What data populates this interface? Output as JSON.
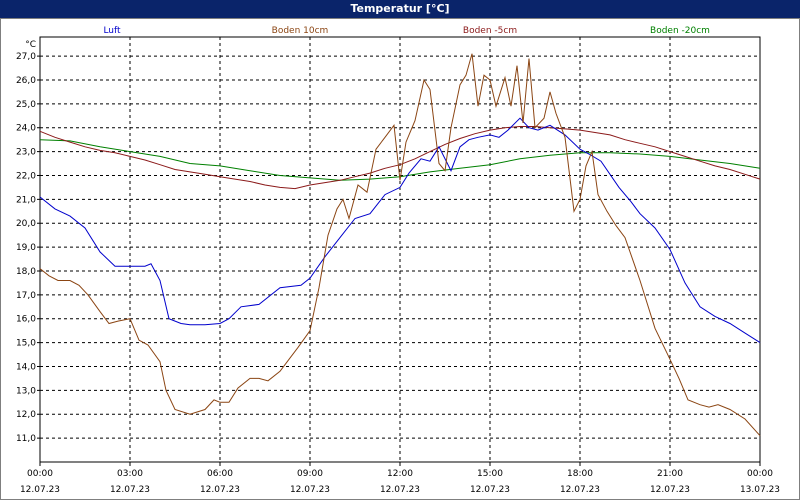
{
  "window": {
    "title": "Temperatur [°C]"
  },
  "chart_data": {
    "type": "line",
    "title": "Temperatur [°C]",
    "ylabel": "°C",
    "ylim": [
      10,
      27.8
    ],
    "yticks": [
      "11,0",
      "12,0",
      "13,0",
      "14,0",
      "15,0",
      "16,0",
      "17,0",
      "18,0",
      "19,0",
      "20,0",
      "21,0",
      "22,0",
      "23,0",
      "24,0",
      "25,0",
      "26,0",
      "27,0"
    ],
    "xticks": [
      {
        "time": "00:00",
        "date": "12.07.23"
      },
      {
        "time": "03:00",
        "date": "12.07.23"
      },
      {
        "time": "06:00",
        "date": "12.07.23"
      },
      {
        "time": "09:00",
        "date": "12.07.23"
      },
      {
        "time": "12:00",
        "date": "12.07.23"
      },
      {
        "time": "15:00",
        "date": "12.07.23"
      },
      {
        "time": "18:00",
        "date": "12.07.23"
      },
      {
        "time": "21:00",
        "date": "12.07.23"
      },
      {
        "time": "00:00",
        "date": "13.07.23"
      }
    ],
    "xlim_hours": [
      0,
      24
    ],
    "grid": true,
    "legend_position": "top",
    "series": [
      {
        "name": "Luft",
        "color": "#0000cc",
        "points": [
          [
            0,
            21.1
          ],
          [
            0.5,
            20.6
          ],
          [
            1,
            20.3
          ],
          [
            1.5,
            19.8
          ],
          [
            2,
            18.8
          ],
          [
            2.5,
            18.2
          ],
          [
            3,
            18.2
          ],
          [
            3.5,
            18.2
          ],
          [
            3.7,
            18.3
          ],
          [
            4,
            17.6
          ],
          [
            4.3,
            16.0
          ],
          [
            4.7,
            15.8
          ],
          [
            5,
            15.75
          ],
          [
            5.5,
            15.75
          ],
          [
            6,
            15.8
          ],
          [
            6.3,
            16.0
          ],
          [
            6.7,
            16.5
          ],
          [
            7.3,
            16.6
          ],
          [
            8,
            17.3
          ],
          [
            8.7,
            17.4
          ],
          [
            9,
            17.7
          ],
          [
            9.5,
            18.6
          ],
          [
            10,
            19.4
          ],
          [
            10.5,
            20.2
          ],
          [
            11,
            20.4
          ],
          [
            11.5,
            21.2
          ],
          [
            12,
            21.5
          ],
          [
            12.3,
            22.1
          ],
          [
            12.7,
            22.7
          ],
          [
            13,
            22.6
          ],
          [
            13.3,
            23.2
          ],
          [
            13.7,
            22.2
          ],
          [
            14,
            23.2
          ],
          [
            14.3,
            23.5
          ],
          [
            14.6,
            23.6
          ],
          [
            15,
            23.7
          ],
          [
            15.3,
            23.6
          ],
          [
            15.6,
            23.9
          ],
          [
            16,
            24.4
          ],
          [
            16.3,
            24.0
          ],
          [
            16.6,
            23.9
          ],
          [
            17,
            24.1
          ],
          [
            17.5,
            23.7
          ],
          [
            18,
            23.1
          ],
          [
            18.3,
            22.9
          ],
          [
            18.7,
            22.6
          ],
          [
            19.3,
            21.5
          ],
          [
            19.7,
            20.9
          ],
          [
            20,
            20.4
          ],
          [
            20.5,
            19.8
          ],
          [
            21,
            18.9
          ],
          [
            21.5,
            17.5
          ],
          [
            22,
            16.5
          ],
          [
            22.5,
            16.1
          ],
          [
            23,
            15.8
          ],
          [
            23.5,
            15.4
          ],
          [
            24,
            15.0
          ]
        ]
      },
      {
        "name": "Boden 10cm",
        "color": "#8b4513",
        "points": [
          [
            0,
            18.1
          ],
          [
            0.3,
            17.8
          ],
          [
            0.6,
            17.6
          ],
          [
            1,
            17.6
          ],
          [
            1.3,
            17.4
          ],
          [
            1.6,
            17.0
          ],
          [
            2,
            16.3
          ],
          [
            2.3,
            15.8
          ],
          [
            2.6,
            15.9
          ],
          [
            3,
            16.0
          ],
          [
            3.3,
            15.1
          ],
          [
            3.6,
            14.9
          ],
          [
            4,
            14.2
          ],
          [
            4.2,
            13.0
          ],
          [
            4.5,
            12.2
          ],
          [
            5,
            12.0
          ],
          [
            5.5,
            12.2
          ],
          [
            5.8,
            12.6
          ],
          [
            6,
            12.5
          ],
          [
            6.3,
            12.5
          ],
          [
            6.6,
            13.1
          ],
          [
            7,
            13.5
          ],
          [
            7.3,
            13.5
          ],
          [
            7.6,
            13.4
          ],
          [
            8,
            13.8
          ],
          [
            8.3,
            14.3
          ],
          [
            8.6,
            14.8
          ],
          [
            9,
            15.5
          ],
          [
            9.3,
            17.3
          ],
          [
            9.6,
            19.5
          ],
          [
            9.9,
            20.6
          ],
          [
            10.1,
            21.0
          ],
          [
            10.3,
            20.2
          ],
          [
            10.6,
            21.6
          ],
          [
            10.9,
            21.3
          ],
          [
            11.2,
            23.1
          ],
          [
            11.5,
            23.6
          ],
          [
            11.8,
            24.1
          ],
          [
            12,
            21.8
          ],
          [
            12.2,
            23.4
          ],
          [
            12.5,
            24.3
          ],
          [
            12.8,
            26.0
          ],
          [
            13,
            25.6
          ],
          [
            13.3,
            22.5
          ],
          [
            13.5,
            22.2
          ],
          [
            13.7,
            24.0
          ],
          [
            14,
            25.8
          ],
          [
            14.2,
            26.2
          ],
          [
            14.4,
            27.1
          ],
          [
            14.6,
            24.9
          ],
          [
            14.8,
            26.2
          ],
          [
            15,
            26.0
          ],
          [
            15.2,
            24.9
          ],
          [
            15.5,
            26.1
          ],
          [
            15.7,
            24.9
          ],
          [
            15.9,
            26.6
          ],
          [
            16.1,
            24.2
          ],
          [
            16.3,
            26.9
          ],
          [
            16.5,
            24.0
          ],
          [
            16.8,
            24.4
          ],
          [
            17,
            25.5
          ],
          [
            17.2,
            24.6
          ],
          [
            17.5,
            23.6
          ],
          [
            17.8,
            20.5
          ],
          [
            18,
            21.0
          ],
          [
            18.2,
            22.4
          ],
          [
            18.4,
            23.0
          ],
          [
            18.6,
            21.2
          ],
          [
            18.9,
            20.5
          ],
          [
            19.2,
            19.9
          ],
          [
            19.5,
            19.4
          ],
          [
            20,
            17.6
          ],
          [
            20.5,
            15.6
          ],
          [
            21,
            14.3
          ],
          [
            21.3,
            13.5
          ],
          [
            21.6,
            12.6
          ],
          [
            22,
            12.4
          ],
          [
            22.3,
            12.3
          ],
          [
            22.6,
            12.4
          ],
          [
            23,
            12.2
          ],
          [
            23.5,
            11.8
          ],
          [
            24,
            11.1
          ]
        ]
      },
      {
        "name": "Boden -5cm",
        "color": "#8b1a1a",
        "points": [
          [
            0,
            23.85
          ],
          [
            0.5,
            23.6
          ],
          [
            1,
            23.4
          ],
          [
            1.5,
            23.2
          ],
          [
            2,
            23.05
          ],
          [
            2.5,
            22.95
          ],
          [
            3,
            22.8
          ],
          [
            3.5,
            22.65
          ],
          [
            4,
            22.45
          ],
          [
            4.5,
            22.25
          ],
          [
            5,
            22.15
          ],
          [
            5.5,
            22.05
          ],
          [
            6,
            21.95
          ],
          [
            6.5,
            21.85
          ],
          [
            7,
            21.75
          ],
          [
            7.5,
            21.6
          ],
          [
            8,
            21.5
          ],
          [
            8.5,
            21.45
          ],
          [
            9,
            21.6
          ],
          [
            9.5,
            21.7
          ],
          [
            10,
            21.8
          ],
          [
            10.5,
            21.95
          ],
          [
            11,
            22.1
          ],
          [
            11.5,
            22.3
          ],
          [
            12,
            22.45
          ],
          [
            12.5,
            22.7
          ],
          [
            13,
            23.0
          ],
          [
            13.5,
            23.3
          ],
          [
            14,
            23.55
          ],
          [
            14.5,
            23.75
          ],
          [
            15,
            23.9
          ],
          [
            15.5,
            24.0
          ],
          [
            16,
            24.05
          ],
          [
            16.5,
            24.05
          ],
          [
            17,
            24.0
          ],
          [
            17.5,
            23.95
          ],
          [
            18,
            23.9
          ],
          [
            18.5,
            23.8
          ],
          [
            19,
            23.7
          ],
          [
            19.5,
            23.5
          ],
          [
            20,
            23.35
          ],
          [
            20.5,
            23.2
          ],
          [
            21,
            23.0
          ],
          [
            21.5,
            22.8
          ],
          [
            22,
            22.6
          ],
          [
            22.5,
            22.4
          ],
          [
            23,
            22.25
          ],
          [
            23.5,
            22.05
          ],
          [
            24,
            21.85
          ]
        ]
      },
      {
        "name": "Boden -20cm",
        "color": "#008000",
        "points": [
          [
            0,
            23.5
          ],
          [
            1,
            23.45
          ],
          [
            2,
            23.2
          ],
          [
            3,
            23.0
          ],
          [
            4,
            22.8
          ],
          [
            5,
            22.5
          ],
          [
            6,
            22.4
          ],
          [
            7,
            22.2
          ],
          [
            8,
            22.0
          ],
          [
            9,
            21.9
          ],
          [
            10,
            21.8
          ],
          [
            11,
            21.85
          ],
          [
            12,
            21.95
          ],
          [
            13,
            22.15
          ],
          [
            14,
            22.3
          ],
          [
            15,
            22.45
          ],
          [
            16,
            22.7
          ],
          [
            17,
            22.85
          ],
          [
            18,
            22.95
          ],
          [
            19,
            22.95
          ],
          [
            20,
            22.9
          ],
          [
            21,
            22.8
          ],
          [
            22,
            22.65
          ],
          [
            23,
            22.5
          ],
          [
            24,
            22.3
          ]
        ]
      }
    ]
  }
}
